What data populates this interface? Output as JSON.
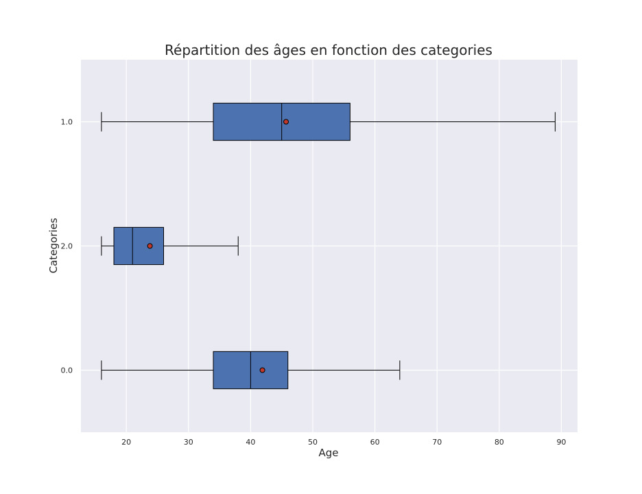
{
  "chart_data": {
    "type": "boxplot",
    "orientation": "horizontal",
    "title": "Répartition des âges en fonction des categories",
    "xlabel": "Age",
    "ylabel": "Categories",
    "xlim": [
      12.7,
      92.6
    ],
    "x_ticks": [
      20,
      30,
      40,
      50,
      60,
      70,
      80,
      90
    ],
    "grid": true,
    "categories": [
      "0.0",
      "2.0",
      "1.0"
    ],
    "series": [
      {
        "category": "0.0",
        "whisker_low": 16,
        "q1": 34,
        "median": 40,
        "q3": 46,
        "whisker_high": 64,
        "mean": 41.9
      },
      {
        "category": "2.0",
        "whisker_low": 16,
        "q1": 18,
        "median": 21,
        "q3": 26,
        "whisker_high": 38,
        "mean": 23.8
      },
      {
        "category": "1.0",
        "whisker_low": 16,
        "q1": 34,
        "median": 45,
        "q3": 56,
        "whisker_high": 89,
        "mean": 45.7
      }
    ],
    "colors": {
      "box_fill": "#4c72b0",
      "mean_marker": "#c0392b",
      "background": "#eaeaf2",
      "grid": "#ffffff"
    }
  }
}
